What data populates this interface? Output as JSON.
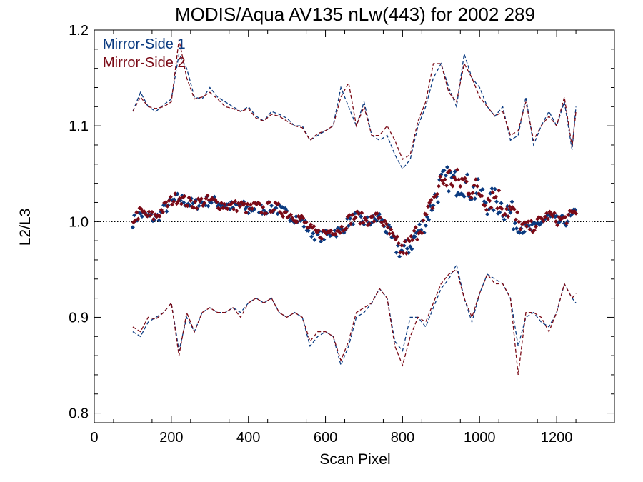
{
  "chart_data": {
    "type": "scatter",
    "title": "MODIS/Aqua AV135 nLw(443) for 2002 289",
    "xlabel": "Scan Pixel",
    "ylabel": "L2/L3",
    "xlim": [
      0,
      1350
    ],
    "ylim": [
      0.79,
      1.2
    ],
    "x_ticks": [
      0,
      200,
      400,
      600,
      800,
      1000,
      1200
    ],
    "x_tick_labels": [
      "0",
      "200",
      "400",
      "600",
      "800",
      "1000",
      "1200"
    ],
    "y_ticks": [
      0.8,
      0.9,
      1.0,
      1.1,
      1.2
    ],
    "y_tick_labels": [
      "0.8",
      "0.9",
      "1.0",
      "1.1",
      "1.2"
    ],
    "reference_line": {
      "y": 1.0,
      "style": "dotted"
    },
    "legend_position": "top-left",
    "colors": {
      "side1": "#0a3a80",
      "side2": "#7a0a16"
    },
    "series": [
      {
        "name": "Mirror-Side 1",
        "color": "#0a3a80",
        "mean_x": [
          100,
          120,
          140,
          160,
          180,
          200,
          220,
          240,
          260,
          280,
          300,
          320,
          340,
          360,
          380,
          400,
          420,
          440,
          460,
          480,
          500,
          520,
          540,
          560,
          580,
          600,
          620,
          640,
          660,
          680,
          700,
          720,
          740,
          760,
          780,
          800,
          820,
          840,
          860,
          880,
          900,
          920,
          940,
          960,
          980,
          1000,
          1020,
          1040,
          1060,
          1080,
          1100,
          1120,
          1140,
          1160,
          1180,
          1200,
          1220,
          1240,
          1250
        ],
        "mean_y": [
          1.0,
          1.008,
          1.005,
          1.003,
          1.012,
          1.02,
          1.025,
          1.02,
          1.018,
          1.02,
          1.022,
          1.02,
          1.018,
          1.015,
          1.018,
          1.012,
          1.015,
          1.013,
          1.015,
          1.012,
          1.008,
          1.005,
          1.0,
          0.99,
          0.985,
          0.985,
          0.99,
          0.99,
          1.0,
          1.005,
          1.0,
          1.0,
          1.005,
          0.99,
          0.975,
          0.968,
          0.975,
          0.99,
          1.0,
          1.02,
          1.04,
          1.045,
          1.04,
          1.04,
          1.032,
          1.03,
          1.02,
          1.022,
          1.015,
          1.01,
          0.995,
          0.992,
          0.993,
          1.0,
          1.005,
          1.0,
          1.0,
          1.005,
          1.01
        ],
        "upper_y": [
          1.115,
          1.135,
          1.12,
          1.115,
          1.122,
          1.128,
          1.175,
          1.16,
          1.13,
          1.128,
          1.14,
          1.13,
          1.125,
          1.12,
          1.115,
          1.12,
          1.11,
          1.105,
          1.115,
          1.112,
          1.108,
          1.1,
          1.1,
          1.085,
          1.09,
          1.095,
          1.1,
          1.14,
          1.12,
          1.1,
          1.125,
          1.09,
          1.085,
          1.09,
          1.07,
          1.055,
          1.065,
          1.1,
          1.12,
          1.15,
          1.165,
          1.14,
          1.12,
          1.175,
          1.15,
          1.14,
          1.12,
          1.11,
          1.12,
          1.085,
          1.09,
          1.13,
          1.08,
          1.1,
          1.115,
          1.1,
          1.125,
          1.075,
          1.12
        ],
        "lower_y": [
          0.885,
          0.88,
          0.895,
          0.9,
          0.905,
          0.915,
          0.865,
          0.9,
          0.885,
          0.905,
          0.91,
          0.905,
          0.905,
          0.91,
          0.905,
          0.915,
          0.92,
          0.915,
          0.92,
          0.905,
          0.9,
          0.905,
          0.9,
          0.87,
          0.88,
          0.885,
          0.88,
          0.85,
          0.87,
          0.9,
          0.905,
          0.915,
          0.93,
          0.92,
          0.875,
          0.865,
          0.9,
          0.9,
          0.89,
          0.91,
          0.93,
          0.94,
          0.955,
          0.92,
          0.895,
          0.925,
          0.945,
          0.94,
          0.935,
          0.92,
          0.87,
          0.9,
          0.905,
          0.895,
          0.89,
          0.905,
          0.935,
          0.92,
          0.915
        ]
      },
      {
        "name": "Mirror-Side 2",
        "color": "#7a0a16",
        "mean_x": [
          100,
          120,
          140,
          160,
          180,
          200,
          220,
          240,
          260,
          280,
          300,
          320,
          340,
          360,
          380,
          400,
          420,
          440,
          460,
          480,
          500,
          520,
          540,
          560,
          580,
          600,
          620,
          640,
          660,
          680,
          700,
          720,
          740,
          760,
          780,
          800,
          820,
          840,
          860,
          880,
          900,
          920,
          940,
          960,
          980,
          1000,
          1020,
          1040,
          1060,
          1080,
          1100,
          1120,
          1140,
          1160,
          1180,
          1200,
          1220,
          1240,
          1250
        ],
        "mean_y": [
          1.002,
          1.01,
          1.006,
          1.005,
          1.014,
          1.022,
          1.026,
          1.02,
          1.019,
          1.021,
          1.022,
          1.019,
          1.017,
          1.016,
          1.017,
          1.013,
          1.016,
          1.012,
          1.016,
          1.013,
          1.009,
          1.006,
          1.002,
          0.992,
          0.987,
          0.988,
          0.992,
          0.992,
          1.002,
          1.006,
          1.002,
          1.002,
          1.006,
          0.992,
          0.977,
          0.97,
          0.977,
          0.992,
          1.003,
          1.022,
          1.042,
          1.046,
          1.042,
          1.042,
          1.035,
          1.032,
          1.024,
          1.028,
          1.018,
          1.012,
          0.998,
          0.994,
          0.995,
          1.002,
          1.007,
          1.002,
          1.002,
          1.007,
          1.012
        ],
        "upper_y": [
          1.115,
          1.13,
          1.12,
          1.118,
          1.12,
          1.125,
          1.19,
          1.15,
          1.128,
          1.13,
          1.135,
          1.128,
          1.12,
          1.118,
          1.115,
          1.118,
          1.108,
          1.105,
          1.112,
          1.11,
          1.105,
          1.1,
          1.098,
          1.085,
          1.092,
          1.095,
          1.1,
          1.13,
          1.145,
          1.1,
          1.12,
          1.09,
          1.09,
          1.1,
          1.085,
          1.065,
          1.07,
          1.105,
          1.125,
          1.165,
          1.165,
          1.135,
          1.125,
          1.165,
          1.15,
          1.13,
          1.12,
          1.11,
          1.115,
          1.09,
          1.095,
          1.125,
          1.085,
          1.1,
          1.11,
          1.1,
          1.13,
          1.078,
          1.115
        ],
        "lower_y": [
          0.89,
          0.885,
          0.9,
          0.898,
          0.905,
          0.915,
          0.86,
          0.905,
          0.885,
          0.905,
          0.91,
          0.905,
          0.905,
          0.91,
          0.9,
          0.915,
          0.92,
          0.915,
          0.92,
          0.905,
          0.9,
          0.905,
          0.9,
          0.875,
          0.885,
          0.885,
          0.88,
          0.855,
          0.875,
          0.905,
          0.91,
          0.915,
          0.93,
          0.92,
          0.87,
          0.85,
          0.88,
          0.9,
          0.895,
          0.915,
          0.935,
          0.945,
          0.95,
          0.92,
          0.9,
          0.925,
          0.945,
          0.935,
          0.935,
          0.92,
          0.84,
          0.905,
          0.905,
          0.9,
          0.885,
          0.905,
          0.935,
          0.92,
          0.925
        ]
      }
    ]
  }
}
